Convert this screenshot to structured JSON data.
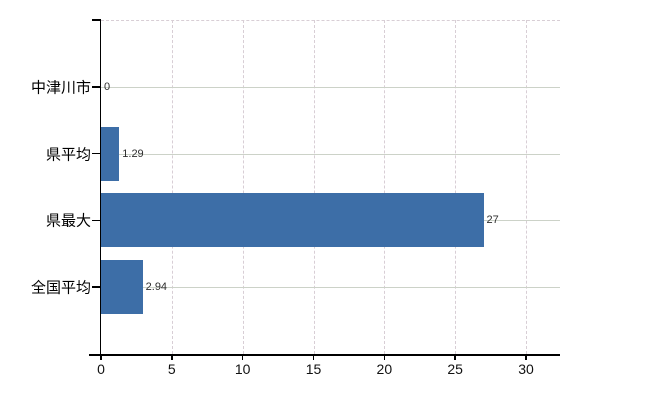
{
  "chart_data": {
    "type": "bar",
    "orientation": "horizontal",
    "title": "",
    "xlabel": "",
    "ylabel": "",
    "legend": null,
    "categories": [
      "中津川市",
      "県平均",
      "県最大",
      "全国平均"
    ],
    "values": [
      0,
      1.29,
      27,
      2.94
    ],
    "value_labels": [
      "0",
      "1.29",
      "27",
      "2.94"
    ],
    "x_ticks": [
      0,
      5,
      10,
      15,
      20,
      25,
      30
    ],
    "x_tick_labels": [
      "0",
      "5",
      "10",
      "15",
      "20",
      "25",
      "30"
    ],
    "xlim": [
      0,
      32.4
    ],
    "grid": {
      "vertical": "dashed",
      "horizontal": "solid"
    },
    "colors": {
      "bar": "#3d6ea7",
      "axis": "#000000",
      "vertical_grid": "#d8ced5",
      "horizontal_grid": "#ccd2c8",
      "value_label_text": "#2e2e2e",
      "category_label_text": "#000000",
      "tick_label_text": "#111111",
      "background": "#ffffff"
    }
  }
}
